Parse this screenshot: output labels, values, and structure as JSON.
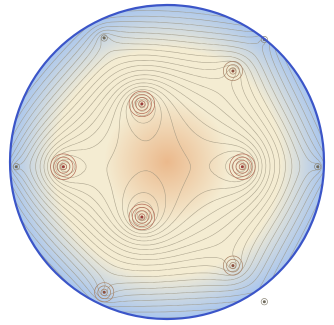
{
  "diagram": {
    "kind": "contour-plot-on-disk",
    "colors": {
      "background": "#ffffff",
      "rim": "#3b55c8",
      "outer": "#a9c6ee",
      "mid": "#f4ecd2",
      "inner": "#ebb98c",
      "contour": "#9a917c"
    },
    "contour_levels": 24,
    "inner_points": [
      {
        "name": "inner-top",
        "dx": -0.16,
        "dy": -0.37
      },
      {
        "name": "inner-right",
        "dx": 0.48,
        "dy": 0.03
      },
      {
        "name": "inner-bottom",
        "dx": -0.16,
        "dy": 0.35
      },
      {
        "name": "inner-left",
        "dx": -0.66,
        "dy": 0.03
      }
    ],
    "saddle_points": [
      {
        "name": "saddle-top-right",
        "dx": 0.42,
        "dy": -0.58
      },
      {
        "name": "saddle-bottom-right",
        "dx": 0.42,
        "dy": 0.66
      },
      {
        "name": "saddle-bottom-left",
        "dx": -0.4,
        "dy": 0.83
      }
    ],
    "boundary_points": [
      {
        "name": "boundary-top-left",
        "dx": -0.4,
        "dy": -0.79
      },
      {
        "name": "boundary-top-right",
        "dx": 0.62,
        "dy": -0.78
      },
      {
        "name": "boundary-right",
        "dx": 0.96,
        "dy": 0.03
      },
      {
        "name": "boundary-left",
        "dx": -0.96,
        "dy": 0.03
      },
      {
        "name": "boundary-bottom-right",
        "dx": 0.62,
        "dy": 0.89
      }
    ]
  }
}
